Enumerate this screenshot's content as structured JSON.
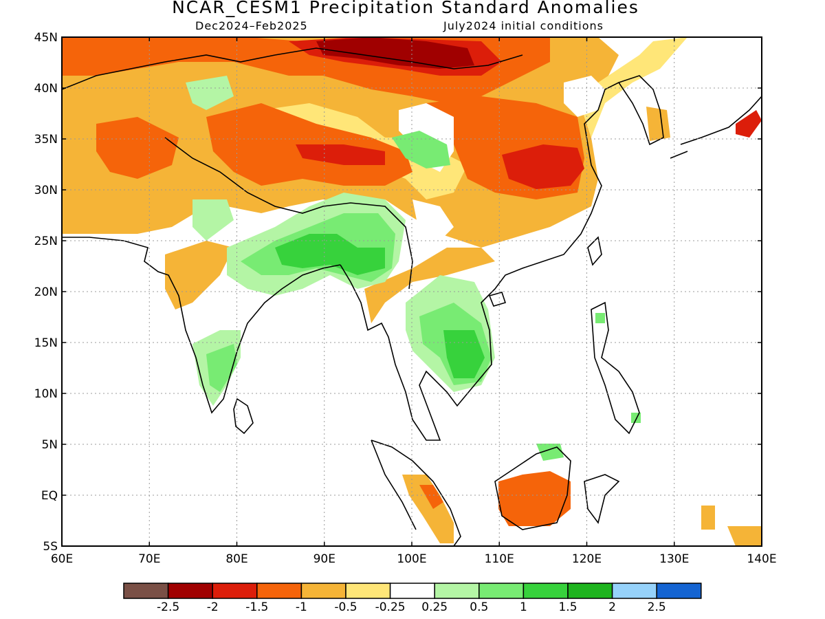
{
  "title": "NCAR_CESM1 Precipitation Standard Anomalies",
  "subtitle_left": "Dec2024–Feb2025",
  "subtitle_right": "July2024 initial conditions",
  "map": {
    "lon_range": [
      60,
      140
    ],
    "lat_range": [
      -5,
      45
    ],
    "lon_ticks": [
      "60E",
      "70E",
      "80E",
      "90E",
      "100E",
      "110E",
      "120E",
      "130E",
      "140E"
    ],
    "lat_ticks": [
      "45N",
      "40N",
      "35N",
      "30N",
      "25N",
      "20N",
      "15N",
      "10N",
      "5N",
      "EQ",
      "5S"
    ]
  },
  "colorbar": {
    "colors": [
      "#7a5046",
      "#a00000",
      "#dc1e0a",
      "#f5640a",
      "#f5b437",
      "#ffe678",
      "#ffffff",
      "#b4f5a5",
      "#78eb73",
      "#37d23c",
      "#1eb41e",
      "#96d2fa",
      "#1464d2"
    ],
    "labels": [
      "-2.5",
      "-2",
      "-1.5",
      "-1",
      "-0.5",
      "-0.25",
      "0.25",
      "0.5",
      "1",
      "1.5",
      "2",
      "2.5"
    ]
  },
  "anomaly_regions": [
    {
      "category": "-0.5",
      "color": "#f5b437"
    },
    {
      "category": "-1",
      "color": "#f5640a"
    },
    {
      "category": "-1.5",
      "color": "#dc1e0a"
    },
    {
      "category": "-2",
      "color": "#a00000"
    },
    {
      "category": "-0.25",
      "color": "#ffe678"
    },
    {
      "category": "0.5",
      "color": "#b4f5a5"
    },
    {
      "category": "1",
      "color": "#78eb73"
    },
    {
      "category": "1.5",
      "color": "#37d23c"
    }
  ]
}
